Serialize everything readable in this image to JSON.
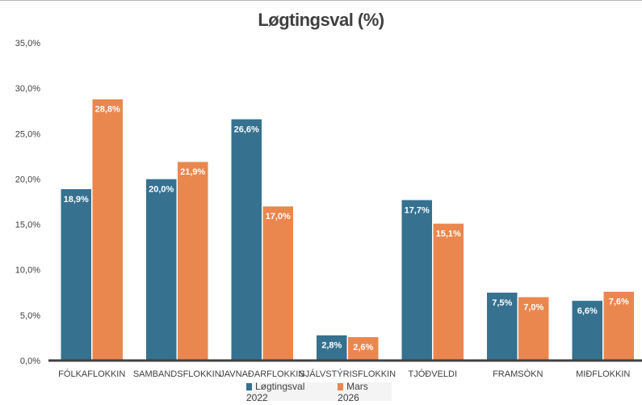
{
  "chart_data": {
    "type": "bar",
    "title": "Løgtingsval (%)",
    "xlabel": "",
    "ylabel": "",
    "ylim": [
      0,
      35
    ],
    "yticks": [
      "0,0%",
      "5,0%",
      "10,0%",
      "15,0%",
      "20,0%",
      "25,0%",
      "30,0%",
      "35,0%"
    ],
    "grid": false,
    "legend_position": "bottom",
    "categories": [
      "FÓLKAFLOKKIN",
      "SAMBANDSFLOKKIN",
      "JAVNAÐARFLOKKIN",
      "SJÁLVSTÝRISFLOKKIN",
      "TJÓÐVELDI",
      "FRAMSÓKN",
      "MIÐFLOKKIN"
    ],
    "series": [
      {
        "name": "Løgtingsval 2022",
        "color": "#36718f",
        "values": [
          18.9,
          20.0,
          26.6,
          2.8,
          17.7,
          7.5,
          6.6
        ],
        "labels": [
          "18,9%",
          "20,0%",
          "26,6%",
          "2,8%",
          "17,7%",
          "7,5%",
          "6,6%"
        ]
      },
      {
        "name": "Mars 2026",
        "color": "#ea874f",
        "values": [
          28.8,
          21.9,
          17.0,
          2.6,
          15.1,
          7.0,
          7.6
        ],
        "labels": [
          "28,8%",
          "21,9%",
          "17,0%",
          "2,6%",
          "15,1%",
          "7,0%",
          "7,6%"
        ]
      }
    ]
  }
}
